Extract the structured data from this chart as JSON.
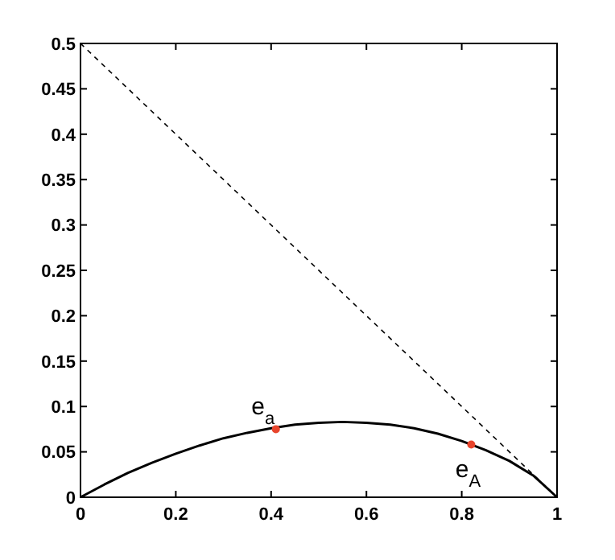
{
  "chart_data": {
    "type": "line",
    "xlim": [
      0,
      1
    ],
    "ylim": [
      0,
      0.5
    ],
    "xticks": [
      0,
      0.2,
      0.4,
      0.6,
      0.8,
      1
    ],
    "yticks": [
      0,
      0.05,
      0.1,
      0.15,
      0.2,
      0.25,
      0.3,
      0.35,
      0.4,
      0.45,
      0.5
    ],
    "series": [
      {
        "color": "#000000",
        "line_style": "solid",
        "x": [
          0,
          0.05,
          0.1,
          0.15,
          0.2,
          0.25,
          0.3,
          0.35,
          0.4,
          0.45,
          0.5,
          0.55,
          0.6,
          0.65,
          0.7,
          0.75,
          0.8,
          0.85,
          0.9,
          0.95,
          1
        ],
        "values": [
          0,
          0.014,
          0.027,
          0.038,
          0.048,
          0.057,
          0.065,
          0.071,
          0.076,
          0.08,
          0.082,
          0.083,
          0.082,
          0.08,
          0.076,
          0.07,
          0.062,
          0.052,
          0.04,
          0.024,
          0
        ]
      },
      {
        "color": "#000000",
        "line_style": "dashed",
        "x": [
          0,
          1
        ],
        "values": [
          0.5,
          0
        ]
      },
      {
        "type": "scatter",
        "color": "#e8452c",
        "marker": "circle",
        "x": [
          0.41,
          0.82
        ],
        "values": [
          0.075,
          0.058
        ]
      }
    ],
    "annotations": [
      {
        "text": "e$_{a}$",
        "x": 0.41,
        "y": 0.075
      },
      {
        "text": "e$_{A}$",
        "x": 0.82,
        "y": 0.058
      }
    ]
  }
}
